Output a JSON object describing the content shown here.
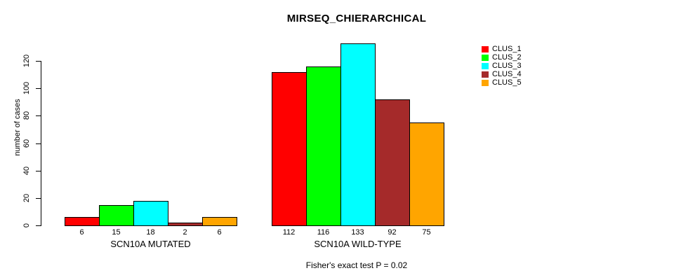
{
  "chart_data": {
    "type": "bar",
    "title": "MIRSEQ_CHIERARCHICAL",
    "ylabel": "number of cases",
    "yticks": [
      0,
      20,
      40,
      60,
      80,
      100,
      120
    ],
    "ylim": [
      0,
      135
    ],
    "grid": false,
    "legend_position": "right",
    "series_colors": [
      "#FF0000",
      "#00FF00",
      "#00FFFF",
      "#A52A2A",
      "#FFA500"
    ],
    "bar_border_color": "#000000",
    "groups": [
      {
        "label": "SCN10A MUTATED",
        "values": [
          6,
          15,
          18,
          2,
          6
        ]
      },
      {
        "label": "SCN10A WILD-TYPE",
        "values": [
          112,
          116,
          133,
          92,
          75
        ]
      }
    ],
    "legend": [
      {
        "label": "CLUS_1",
        "color": "#FF0000"
      },
      {
        "label": "CLUS_2",
        "color": "#00FF00"
      },
      {
        "label": "CLUS_3",
        "color": "#00FFFF"
      },
      {
        "label": "CLUS_4",
        "color": "#A52A2A"
      },
      {
        "label": "CLUS_5",
        "color": "#FFA500"
      }
    ],
    "annotation": "Fisher's exact test P = 0.02"
  }
}
